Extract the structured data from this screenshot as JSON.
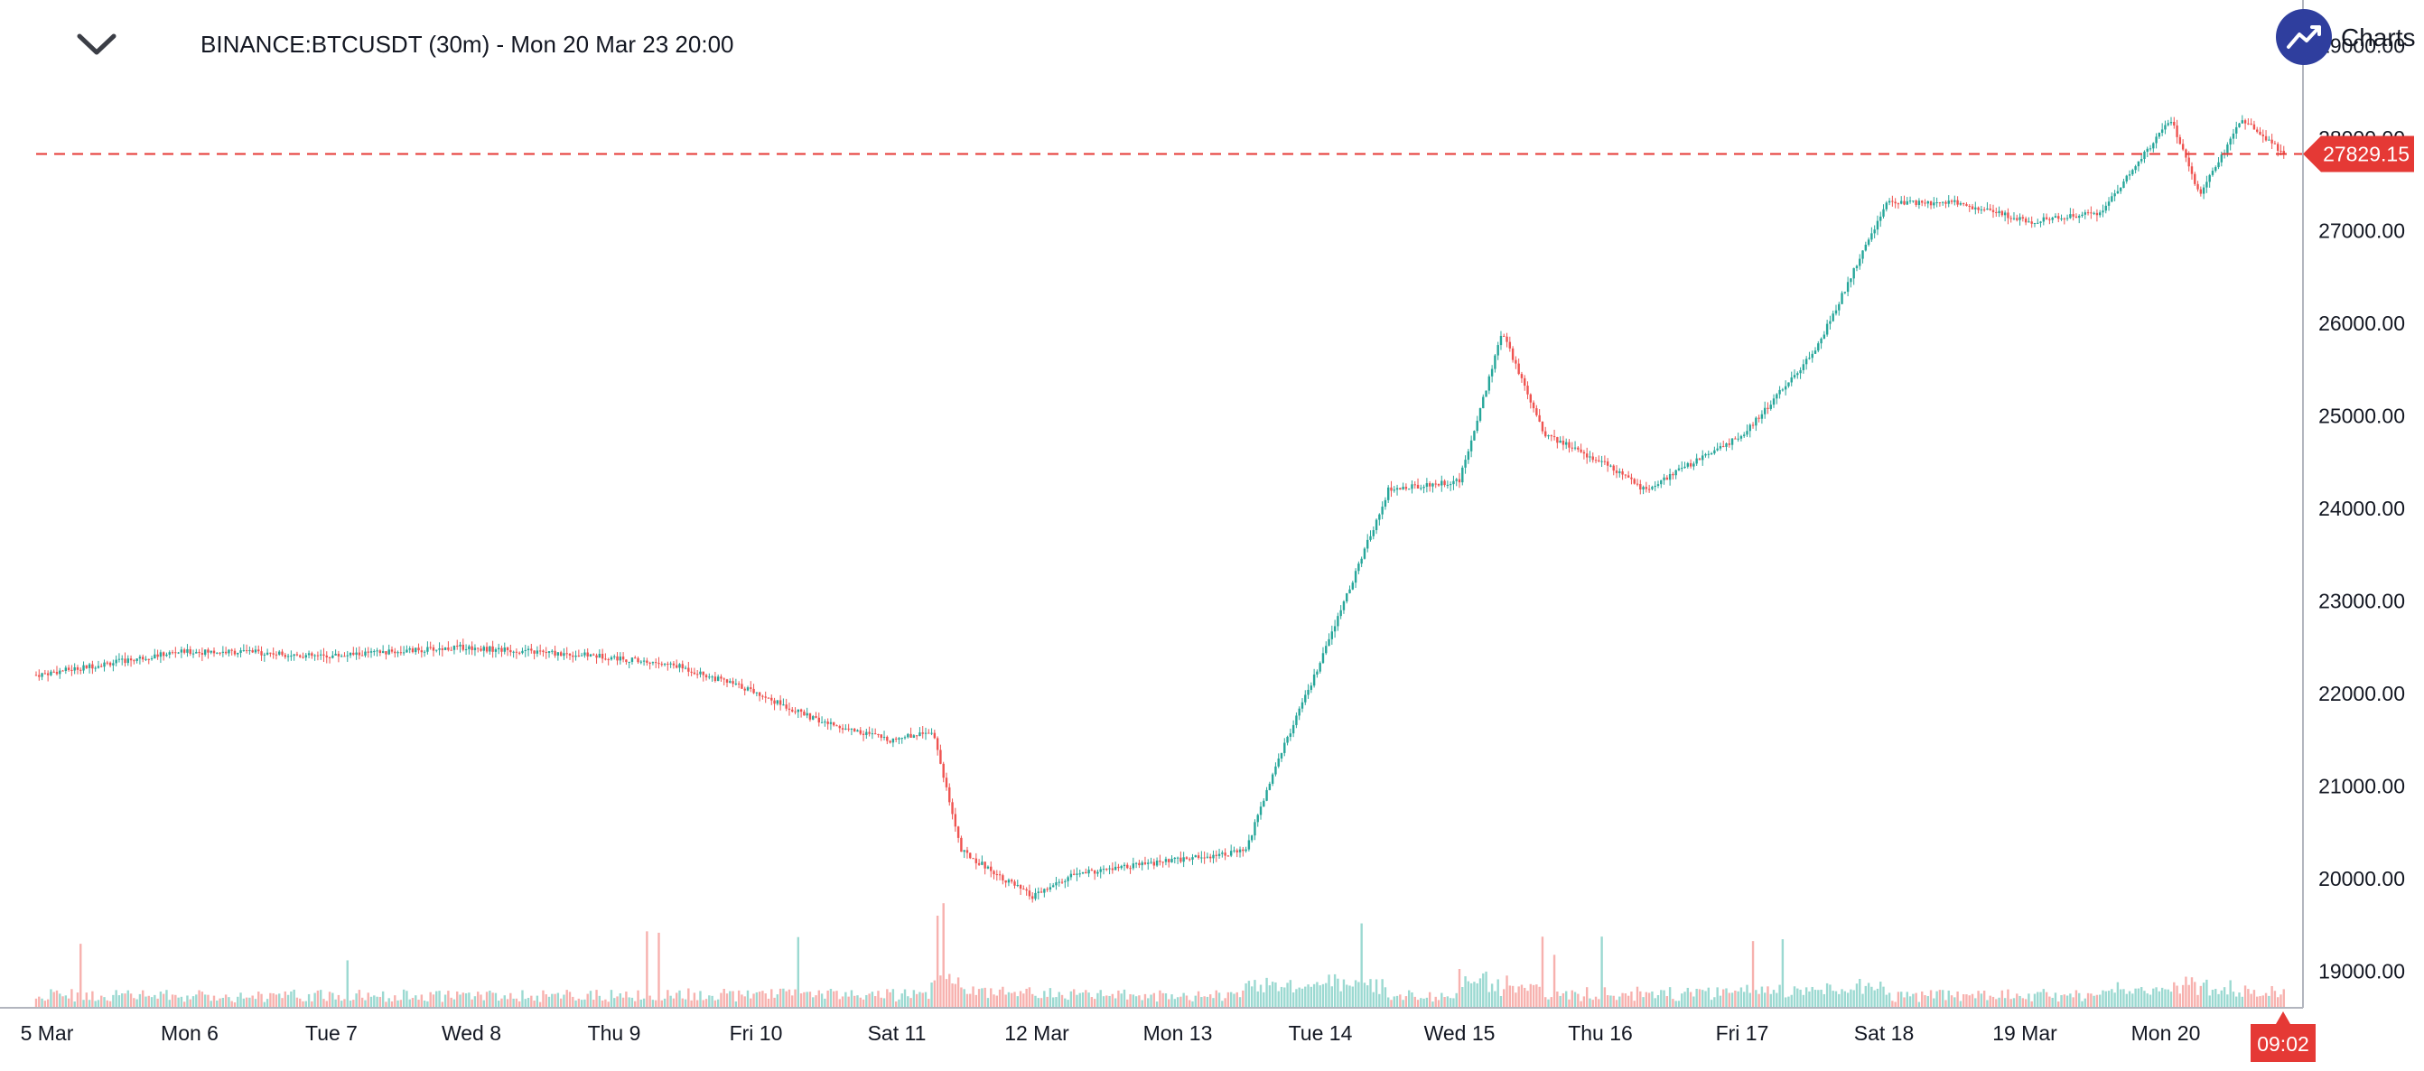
{
  "header": {
    "symbol_title": "BINANCE:BTCUSDT (30m) - Mon 20 Mar 23 20:00",
    "brand_label": "Charts I",
    "collapse_icon": "chevron-down-icon",
    "brand_icon": "trend-up-icon"
  },
  "colors": {
    "up": "#26a69a",
    "down": "#ef5350",
    "price_line": "#e53935",
    "axis_line": "#b2b5be",
    "brand": "#2f3e9e"
  },
  "chart_data": {
    "type": "candlestick",
    "symbol": "BINANCE:BTCUSDT",
    "interval": "30m",
    "y_ticks": [
      "19000.00",
      "20000.00",
      "21000.00",
      "22000.00",
      "23000.00",
      "24000.00",
      "25000.00",
      "26000.00",
      "27000.00",
      "28000.00",
      "29000.00"
    ],
    "ylim": [
      18600,
      29300
    ],
    "x_ticks": [
      "5 Mar",
      "Mon 6",
      "Tue 7",
      "Wed 8",
      "Thu 9",
      "Fri 10",
      "Sat 11",
      "12 Mar",
      "Mon 13",
      "Tue 14",
      "Wed 15",
      "Thu 16",
      "Fri 17",
      "Sat 18",
      "19 Mar",
      "Mon 20"
    ],
    "last_price": "27829.15",
    "last_price_value": 27829.15,
    "time_label": "09:02",
    "price_path": [
      [
        0,
        22200
      ],
      [
        1,
        22450
      ],
      [
        1.5,
        22450
      ],
      [
        2,
        22400
      ],
      [
        3,
        22500
      ],
      [
        4,
        22400
      ],
      [
        4.5,
        22300
      ],
      [
        5,
        22050
      ],
      [
        5.5,
        21700
      ],
      [
        6,
        21500
      ],
      [
        6.3,
        21600
      ],
      [
        6.5,
        20300
      ],
      [
        7,
        19800
      ],
      [
        7.3,
        20050
      ],
      [
        8,
        20200
      ],
      [
        8.5,
        20300
      ],
      [
        8.7,
        21200
      ],
      [
        9,
        22250
      ],
      [
        9.5,
        24200
      ],
      [
        10,
        24300
      ],
      [
        10.3,
        25900
      ],
      [
        10.6,
        24800
      ],
      [
        11,
        24500
      ],
      [
        11.3,
        24200
      ],
      [
        12,
        24800
      ],
      [
        12.5,
        25700
      ],
      [
        13,
        27300
      ],
      [
        13.5,
        27300
      ],
      [
        14,
        27100
      ],
      [
        14.5,
        27200
      ],
      [
        15,
        28200
      ],
      [
        15.2,
        27400
      ],
      [
        15.5,
        28200
      ],
      [
        15.8,
        27829.15
      ]
    ],
    "volume_scale": [
      0,
      1
    ]
  }
}
